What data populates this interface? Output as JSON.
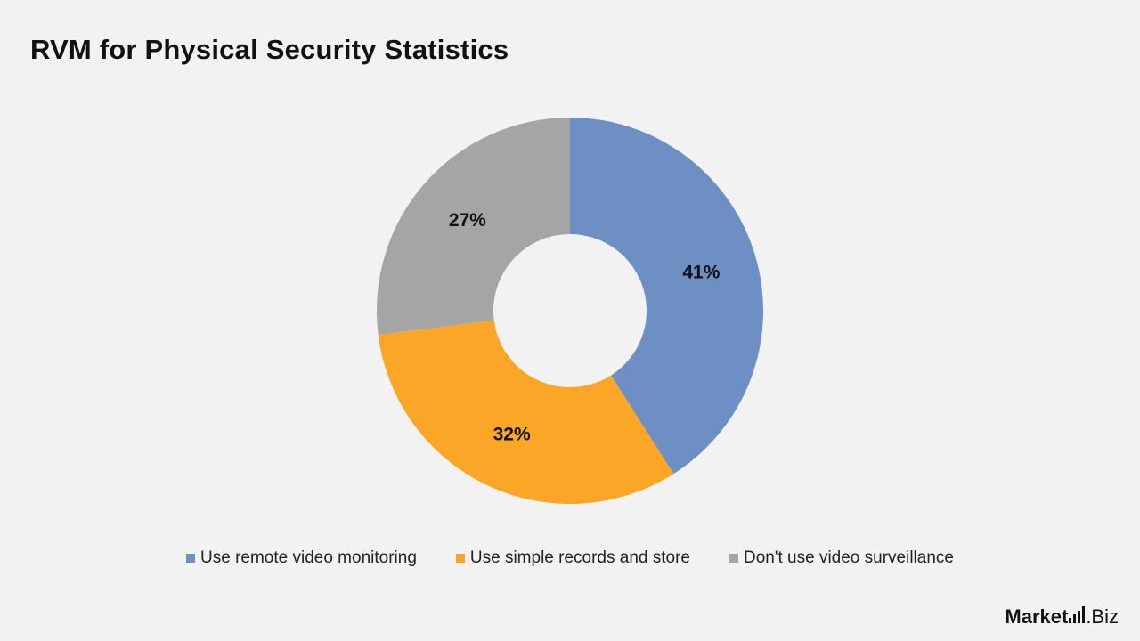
{
  "chart_data": {
    "type": "pie",
    "variant": "donut",
    "title": "RVM for Physical Security Statistics",
    "categories": [
      "Use remote video monitoring",
      "Use simple records and store",
      "Don't use video surveillance"
    ],
    "values": [
      41,
      32,
      27
    ],
    "labels": [
      "41%",
      "32%",
      "27%"
    ],
    "colors": [
      "#6d8fc3",
      "#fba626",
      "#a5a5a5"
    ],
    "legend_position": "bottom"
  },
  "brand": {
    "main": "Market",
    "tld": ".Biz"
  }
}
